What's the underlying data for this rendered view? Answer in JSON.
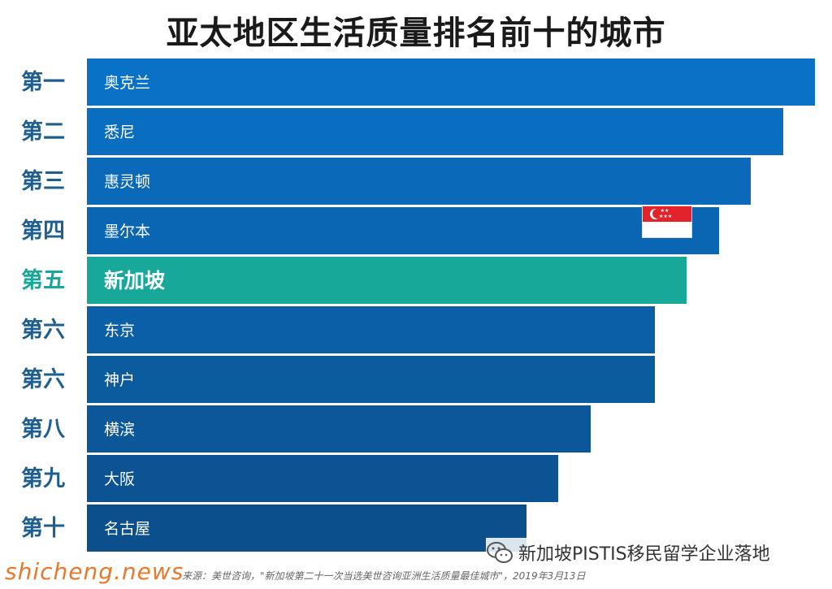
{
  "chart_data": {
    "type": "bar",
    "orientation": "horizontal",
    "title": "亚太地区生活质量排名前十的城市",
    "rank_labels": [
      "第一",
      "第二",
      "第三",
      "第四",
      "第五",
      "第六",
      "第六",
      "第八",
      "第九",
      "第十"
    ],
    "categories": [
      "奥克兰",
      "悉尼",
      "惠灵顿",
      "墨尔本",
      "新加坡",
      "东京",
      "神户",
      "横滨",
      "大阪",
      "名古屋"
    ],
    "values": [
      10,
      9,
      8,
      7,
      6,
      5,
      5,
      3,
      2,
      1
    ],
    "highlight_index": 4,
    "bar_color": "#0d62a8",
    "highlight_color": "#17a89a",
    "grid": false,
    "legend": "none"
  },
  "source": "来源：美世咨询，\"新加坡第二十一次当选美世咨询亚洲生活质量最佳城市\"，2019年3月13日",
  "watermark": "shicheng.news",
  "brand": {
    "icon": "wechat-icon",
    "text": "新加坡PISTIS移民留学企业落地"
  },
  "flag": {
    "icon": "singapore-flag-icon"
  }
}
